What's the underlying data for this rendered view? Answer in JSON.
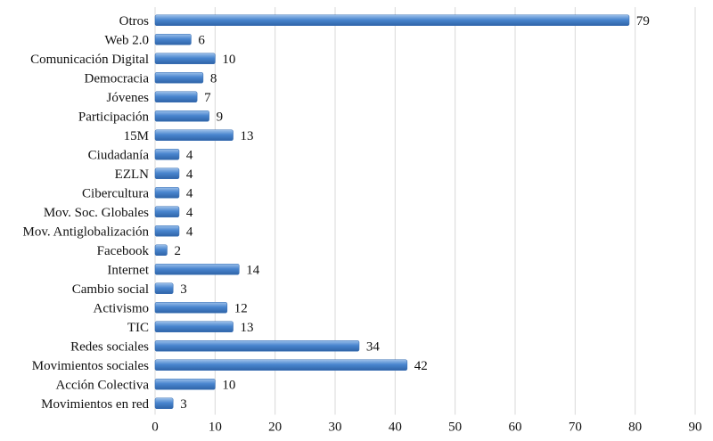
{
  "chart_data": {
    "type": "bar",
    "orientation": "horizontal",
    "categories": [
      "Otros",
      "Web 2.0",
      "Comunicación Digital",
      "Democracia",
      "Jóvenes",
      "Participación",
      "15M",
      "Ciudadanía",
      "EZLN",
      "Cibercultura",
      "Mov. Soc. Globales",
      "Mov. Antiglobalización",
      "Facebook",
      "Internet",
      "Cambio social",
      "Activismo",
      "TIC",
      "Redes sociales",
      "Movimientos sociales",
      "Acción Colectiva",
      "Movimientos en red"
    ],
    "values": [
      79,
      6,
      10,
      8,
      7,
      9,
      13,
      4,
      4,
      4,
      4,
      4,
      2,
      14,
      3,
      12,
      13,
      34,
      42,
      10,
      3
    ],
    "xlim": [
      0,
      90
    ],
    "xticks": [
      "0",
      "10",
      "20",
      "30",
      "40",
      "50",
      "60",
      "70",
      "80",
      "90"
    ],
    "grid": "vertical",
    "bar_color": "#4a86cf"
  }
}
